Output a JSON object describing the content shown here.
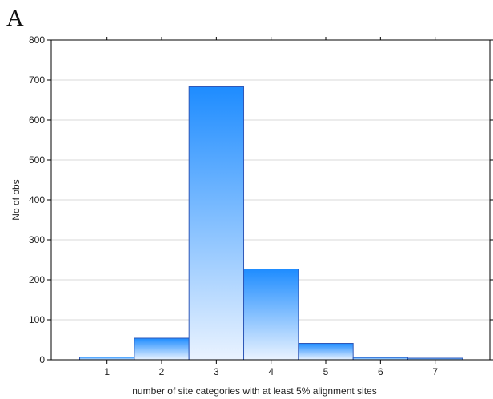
{
  "panel_label": "A",
  "chart_data": {
    "type": "bar",
    "title": "",
    "xlabel": "number of site categories with at least 5% alignment sites",
    "ylabel": "No of obs",
    "ylim": [
      0,
      800
    ],
    "y_ticks": [
      0,
      100,
      200,
      300,
      400,
      500,
      600,
      700,
      800
    ],
    "x_ticks": [
      1,
      2,
      3,
      4,
      5,
      6,
      7
    ],
    "bins": [
      {
        "from": 0.5,
        "to": 1.5,
        "value": 7
      },
      {
        "from": 1.5,
        "to": 2.5,
        "value": 54
      },
      {
        "from": 2.5,
        "to": 3.5,
        "value": 683
      },
      {
        "from": 3.5,
        "to": 4.5,
        "value": 227
      },
      {
        "from": 4.5,
        "to": 5.5,
        "value": 41
      },
      {
        "from": 5.5,
        "to": 6.5,
        "value": 6
      },
      {
        "from": 6.5,
        "to": 7.5,
        "value": 4
      }
    ],
    "xlim": [
      -0.02,
      8.0
    ],
    "grid": true,
    "bar_color_top": "#1e8cff",
    "bar_color_bottom": "#eaf3ff",
    "bar_edge_color": "#2f58b8"
  }
}
